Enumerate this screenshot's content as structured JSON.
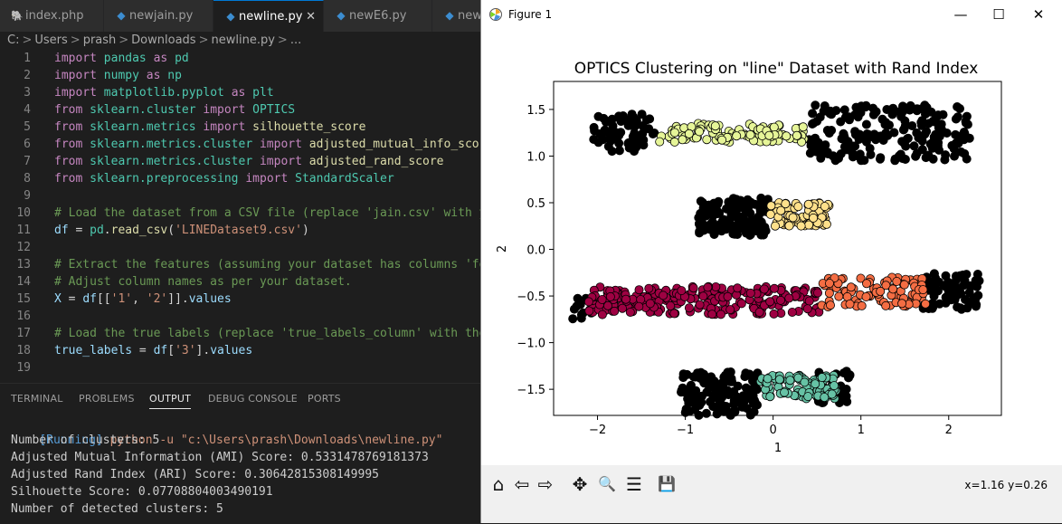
{
  "tabs": [
    {
      "label": "index.php",
      "icon": "php-icon",
      "active": false
    },
    {
      "label": "newjain.py",
      "icon": "python-icon",
      "active": false
    },
    {
      "label": "newline.py",
      "icon": "python-icon",
      "active": true
    },
    {
      "label": "newE6.py",
      "icon": "python-icon",
      "active": false
    },
    {
      "label": "new",
      "icon": "python-icon",
      "active": false
    }
  ],
  "breadcrumb": [
    "C:",
    ">",
    "Users",
    ">",
    "prash",
    ">",
    "Downloads",
    ">",
    "newline.py",
    ">",
    "..."
  ],
  "code_lines": [
    {
      "n": "1",
      "parts": [
        [
          "kw",
          "import"
        ],
        [
          "plain",
          " "
        ],
        [
          "mod",
          "pandas"
        ],
        [
          "plain",
          " "
        ],
        [
          "kw",
          "as"
        ],
        [
          "plain",
          " "
        ],
        [
          "mod",
          "pd"
        ]
      ]
    },
    {
      "n": "2",
      "parts": [
        [
          "kw",
          "import"
        ],
        [
          "plain",
          " "
        ],
        [
          "mod",
          "numpy"
        ],
        [
          "plain",
          " "
        ],
        [
          "kw",
          "as"
        ],
        [
          "plain",
          " "
        ],
        [
          "mod",
          "np"
        ]
      ]
    },
    {
      "n": "3",
      "parts": [
        [
          "kw",
          "import"
        ],
        [
          "plain",
          " "
        ],
        [
          "mod",
          "matplotlib.pyplot"
        ],
        [
          "plain",
          " "
        ],
        [
          "kw",
          "as"
        ],
        [
          "plain",
          " "
        ],
        [
          "mod",
          "plt"
        ]
      ]
    },
    {
      "n": "4",
      "parts": [
        [
          "kw",
          "from"
        ],
        [
          "plain",
          " "
        ],
        [
          "mod",
          "sklearn.cluster"
        ],
        [
          "plain",
          " "
        ],
        [
          "kw",
          "import"
        ],
        [
          "plain",
          " "
        ],
        [
          "cls",
          "OPTICS"
        ]
      ]
    },
    {
      "n": "5",
      "parts": [
        [
          "kw",
          "from"
        ],
        [
          "plain",
          " "
        ],
        [
          "mod",
          "sklearn.metrics"
        ],
        [
          "plain",
          " "
        ],
        [
          "kw",
          "import"
        ],
        [
          "plain",
          " "
        ],
        [
          "fn",
          "silhouette_score"
        ]
      ]
    },
    {
      "n": "6",
      "parts": [
        [
          "kw",
          "from"
        ],
        [
          "plain",
          " "
        ],
        [
          "mod",
          "sklearn.metrics.cluster"
        ],
        [
          "plain",
          " "
        ],
        [
          "kw",
          "import"
        ],
        [
          "plain",
          " "
        ],
        [
          "fn",
          "adjusted_mutual_info_score"
        ]
      ]
    },
    {
      "n": "7",
      "parts": [
        [
          "kw",
          "from"
        ],
        [
          "plain",
          " "
        ],
        [
          "mod",
          "sklearn.metrics.cluster"
        ],
        [
          "plain",
          " "
        ],
        [
          "kw",
          "import"
        ],
        [
          "plain",
          " "
        ],
        [
          "fn",
          "adjusted_rand_score"
        ]
      ]
    },
    {
      "n": "8",
      "parts": [
        [
          "kw",
          "from"
        ],
        [
          "plain",
          " "
        ],
        [
          "mod",
          "sklearn.preprocessing"
        ],
        [
          "plain",
          " "
        ],
        [
          "kw",
          "import"
        ],
        [
          "plain",
          " "
        ],
        [
          "cls",
          "StandardScaler"
        ]
      ]
    },
    {
      "n": "9",
      "parts": []
    },
    {
      "n": "10",
      "parts": [
        [
          "cmt",
          "# Load the dataset from a CSV file (replace 'jain.csv' with your"
        ]
      ]
    },
    {
      "n": "11",
      "parts": [
        [
          "var",
          "df"
        ],
        [
          "plain",
          " = "
        ],
        [
          "mod",
          "pd"
        ],
        [
          "plain",
          "."
        ],
        [
          "fn",
          "read_csv"
        ],
        [
          "plain",
          "("
        ],
        [
          "str",
          "'LINEDataset9.csv'"
        ],
        [
          "plain",
          ")"
        ]
      ]
    },
    {
      "n": "12",
      "parts": []
    },
    {
      "n": "13",
      "parts": [
        [
          "cmt",
          "# Extract the features (assuming your dataset has columns 'feature"
        ]
      ]
    },
    {
      "n": "14",
      "parts": [
        [
          "cmt",
          "# Adjust column names as per your dataset."
        ]
      ]
    },
    {
      "n": "15",
      "parts": [
        [
          "var",
          "X"
        ],
        [
          "plain",
          " = "
        ],
        [
          "var",
          "df"
        ],
        [
          "plain",
          "[["
        ],
        [
          "str",
          "'1'"
        ],
        [
          "plain",
          ", "
        ],
        [
          "str",
          "'2'"
        ],
        [
          "plain",
          "]]."
        ],
        [
          "var",
          "values"
        ]
      ]
    },
    {
      "n": "16",
      "parts": []
    },
    {
      "n": "17",
      "parts": [
        [
          "cmt",
          "# Load the true labels (replace 'true_labels_column' with the act"
        ]
      ]
    },
    {
      "n": "18",
      "parts": [
        [
          "var",
          "true_labels"
        ],
        [
          "plain",
          " = "
        ],
        [
          "var",
          "df"
        ],
        [
          "plain",
          "["
        ],
        [
          "str",
          "'3'"
        ],
        [
          "plain",
          "]."
        ],
        [
          "var",
          "values"
        ]
      ]
    },
    {
      "n": "19",
      "parts": []
    }
  ],
  "panel_tabs": [
    {
      "label": "TERMINAL",
      "active": false
    },
    {
      "label": "PROBLEMS",
      "active": false
    },
    {
      "label": "OUTPUT",
      "active": true
    },
    {
      "label": "DEBUG CONSOLE",
      "active": false
    },
    {
      "label": "PORTS",
      "active": false
    }
  ],
  "output": {
    "running_tag": "[Running]",
    "command": "python -u \"c:\\Users\\prash\\Downloads\\newline.py\"",
    "lines": [
      "Number of clusters: 5",
      "Adjusted Mutual Information (AMI) Score: 0.5331478769181373",
      "Adjusted Rand Index (ARI) Score: 0.30642815308149995",
      "Silhouette Score: 0.07708804003490191",
      "Number of detected clusters: 5"
    ]
  },
  "figure": {
    "window_title": "Figure 1",
    "minimize": "—",
    "maximize": "☐",
    "close": "✕",
    "coords": "x=1.16 y=0.26",
    "toolbar": [
      {
        "name": "home-icon",
        "glyph": "⌂"
      },
      {
        "name": "back-icon",
        "glyph": "⇦"
      },
      {
        "name": "forward-icon",
        "glyph": "⇨"
      },
      {
        "name": "pan-icon",
        "glyph": "✥"
      },
      {
        "name": "zoom-icon",
        "glyph": "🔍"
      },
      {
        "name": "configure-icon",
        "glyph": "☰"
      },
      {
        "name": "save-icon",
        "glyph": "💾"
      }
    ]
  },
  "chart_data": {
    "type": "scatter",
    "title": "OPTICS Clustering on \"line\" Dataset with Rand Index",
    "xlabel": "1",
    "ylabel": "2",
    "xlim": [
      -2.5,
      2.6
    ],
    "ylim": [
      -1.78,
      1.8
    ],
    "xticks": [
      -2,
      -1,
      0,
      1,
      2
    ],
    "xtick_labels": [
      "−2",
      "−1",
      "0",
      "1",
      "2"
    ],
    "yticks": [
      -1.5,
      -1.0,
      -0.5,
      0.0,
      0.5,
      1.0,
      1.5
    ],
    "ytick_labels": [
      "−1.5",
      "−1.0",
      "−0.5",
      "0.0",
      "0.5",
      "1.0",
      "1.5"
    ],
    "grid": false,
    "series": [
      {
        "color": "#000000",
        "regions": [
          {
            "x": [
              -2.05,
              -1.35
            ],
            "y": [
              1.05,
              1.45
            ],
            "n": 70
          },
          {
            "x": [
              0.4,
              2.25
            ],
            "y": [
              0.95,
              1.55
            ],
            "n": 190
          },
          {
            "x": [
              -0.85,
              -0.05
            ],
            "y": [
              0.15,
              0.55
            ],
            "n": 140
          },
          {
            "x": [
              -2.3,
              -2.05
            ],
            "y": [
              -0.75,
              -0.5
            ],
            "n": 12
          },
          {
            "x": [
              1.7,
              2.35
            ],
            "y": [
              -0.65,
              -0.25
            ],
            "n": 75
          },
          {
            "x": [
              -1.05,
              -0.15
            ],
            "y": [
              -1.78,
              -1.3
            ],
            "n": 130
          },
          {
            "x": [
              0.5,
              0.9
            ],
            "y": [
              -1.65,
              -1.3
            ],
            "n": 35
          }
        ]
      },
      {
        "color": "#e6f598",
        "regions": [
          {
            "x": [
              -1.3,
              0.35
            ],
            "y": [
              1.15,
              1.35
            ],
            "n": 110
          }
        ]
      },
      {
        "color": "#fee08b",
        "regions": [
          {
            "x": [
              -0.05,
              0.65
            ],
            "y": [
              0.25,
              0.5
            ],
            "n": 80
          }
        ]
      },
      {
        "color": "#9e0142",
        "regions": [
          {
            "x": [
              -2.1,
              0.55
            ],
            "y": [
              -0.7,
              -0.4
            ],
            "n": 230
          }
        ]
      },
      {
        "color": "#f46d43",
        "regions": [
          {
            "x": [
              0.55,
              1.75
            ],
            "y": [
              -0.62,
              -0.3
            ],
            "n": 90
          }
        ]
      },
      {
        "color": "#66c2a5",
        "regions": [
          {
            "x": [
              -0.15,
              0.72
            ],
            "y": [
              -1.6,
              -1.35
            ],
            "n": 95
          }
        ]
      }
    ]
  }
}
